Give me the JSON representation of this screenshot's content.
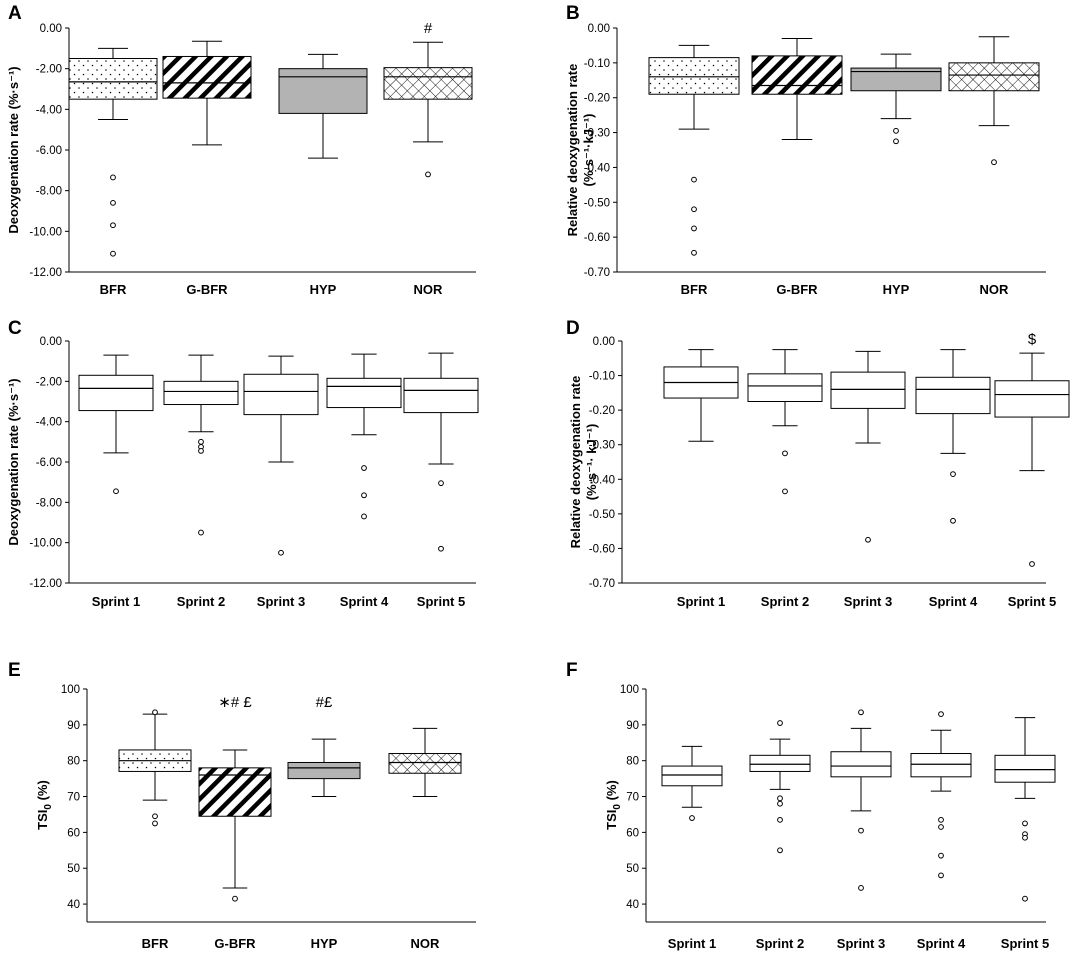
{
  "chart_data": [
    {
      "id": "A",
      "type": "boxplot",
      "panel_label": "A",
      "ylabel": "Deoxygenation rate (%·s⁻¹)",
      "ylim": [
        -12,
        0
      ],
      "yticks": [
        0,
        -2,
        -4,
        -6,
        -8,
        -10,
        -12
      ],
      "ytick_labels": [
        "0.00",
        "-2.00",
        "-4.00",
        "-6.00",
        "-8.00",
        "-10.00",
        "-12.00"
      ],
      "categories": [
        "BFR",
        "G-BFR",
        "HYP",
        "NOR"
      ],
      "boxes": [
        {
          "min": -4.5,
          "q1": -3.5,
          "median": -2.65,
          "q3": -1.5,
          "max": -1.0,
          "outliers": [
            -7.35,
            -8.6,
            -9.7,
            -11.1
          ],
          "pattern": "dots"
        },
        {
          "min": -5.75,
          "q1": -3.45,
          "median": -2.7,
          "q3": -1.4,
          "max": -0.65,
          "outliers": [],
          "pattern": "diag"
        },
        {
          "min": -6.4,
          "q1": -4.2,
          "median": -2.4,
          "q3": -2.0,
          "max": -1.3,
          "outliers": [],
          "pattern": "gray"
        },
        {
          "min": -5.6,
          "q1": -3.5,
          "median": -2.4,
          "q3": -1.95,
          "max": -0.7,
          "outliers": [
            -7.2
          ],
          "pattern": "cross"
        }
      ],
      "annotations": [
        {
          "category_index": 3,
          "text": "#"
        }
      ]
    },
    {
      "id": "B",
      "type": "boxplot",
      "panel_label": "B",
      "ylabel": "Relative deoxygenation rate",
      "ylabel2": "(%·s⁻¹·kJ⁻¹)",
      "ylim": [
        -0.7,
        0
      ],
      "yticks": [
        0,
        -0.1,
        -0.2,
        -0.3,
        -0.4,
        -0.5,
        -0.6,
        -0.7
      ],
      "ytick_labels": [
        "0.00",
        "-0.10",
        "-0.20",
        "-0.30",
        "-0.40",
        "-0.50",
        "-0.60",
        "-0.70"
      ],
      "categories": [
        "BFR",
        "G-BFR",
        "HYP",
        "NOR"
      ],
      "boxes": [
        {
          "min": -0.29,
          "q1": -0.19,
          "median": -0.14,
          "q3": -0.085,
          "max": -0.05,
          "outliers": [
            -0.435,
            -0.52,
            -0.575,
            -0.645
          ],
          "pattern": "dots"
        },
        {
          "min": -0.32,
          "q1": -0.19,
          "median": -0.165,
          "q3": -0.08,
          "max": -0.03,
          "outliers": [],
          "pattern": "diag"
        },
        {
          "min": -0.26,
          "q1": -0.18,
          "median": -0.125,
          "q3": -0.115,
          "max": -0.075,
          "outliers": [
            -0.295,
            -0.325
          ],
          "pattern": "gray"
        },
        {
          "min": -0.28,
          "q1": -0.18,
          "median": -0.135,
          "q3": -0.1,
          "max": -0.025,
          "outliers": [
            -0.385
          ],
          "pattern": "cross"
        }
      ],
      "annotations": []
    },
    {
      "id": "C",
      "type": "boxplot",
      "panel_label": "C",
      "ylabel": "Deoxygenation rate (%·s⁻¹)",
      "ylim": [
        -12,
        0
      ],
      "yticks": [
        0,
        -2,
        -4,
        -6,
        -8,
        -10,
        -12
      ],
      "ytick_labels": [
        "0.00",
        "-2.00",
        "-4.00",
        "-6.00",
        "-8.00",
        "-10.00",
        "-12.00"
      ],
      "categories": [
        "Sprint 1",
        "Sprint 2",
        "Sprint 3",
        "Sprint 4",
        "Sprint 5"
      ],
      "boxes": [
        {
          "min": -5.55,
          "q1": -3.45,
          "median": -2.35,
          "q3": -1.7,
          "max": -0.7,
          "outliers": [
            -7.45
          ],
          "pattern": "none"
        },
        {
          "min": -4.5,
          "q1": -3.15,
          "median": -2.5,
          "q3": -2.0,
          "max": -0.7,
          "outliers": [
            -5.0,
            -5.25,
            -5.45,
            -9.5
          ],
          "pattern": "none"
        },
        {
          "min": -6.0,
          "q1": -3.65,
          "median": -2.5,
          "q3": -1.65,
          "max": -0.75,
          "outliers": [
            -10.5
          ],
          "pattern": "none"
        },
        {
          "min": -4.65,
          "q1": -3.3,
          "median": -2.25,
          "q3": -1.85,
          "max": -0.65,
          "outliers": [
            -6.3,
            -7.65,
            -8.7
          ],
          "pattern": "none"
        },
        {
          "min": -6.1,
          "q1": -3.55,
          "median": -2.45,
          "q3": -1.85,
          "max": -0.6,
          "outliers": [
            -7.05,
            -10.3
          ],
          "pattern": "none"
        }
      ],
      "annotations": []
    },
    {
      "id": "D",
      "type": "boxplot",
      "panel_label": "D",
      "ylabel": "Relative deoxygenation rate",
      "ylabel2": "(%·s⁻¹· kJ⁻¹)",
      "ylim": [
        -0.7,
        0
      ],
      "yticks": [
        0,
        -0.1,
        -0.2,
        -0.3,
        -0.4,
        -0.5,
        -0.6,
        -0.7
      ],
      "ytick_labels": [
        "0.00",
        "-0.10",
        "-0.20",
        "-0.30",
        "-0.40",
        "-0.50",
        "-0.60",
        "-0.70"
      ],
      "categories": [
        "Sprint 1",
        "Sprint 2",
        "Sprint 3",
        "Sprint 4",
        "Sprint 5"
      ],
      "boxes": [
        {
          "min": -0.29,
          "q1": -0.165,
          "median": -0.12,
          "q3": -0.075,
          "max": -0.025,
          "outliers": [],
          "pattern": "none"
        },
        {
          "min": -0.245,
          "q1": -0.175,
          "median": -0.13,
          "q3": -0.095,
          "max": -0.025,
          "outliers": [
            -0.325,
            -0.435
          ],
          "pattern": "none"
        },
        {
          "min": -0.295,
          "q1": -0.195,
          "median": -0.14,
          "q3": -0.09,
          "max": -0.03,
          "outliers": [
            -0.575
          ],
          "pattern": "none"
        },
        {
          "min": -0.325,
          "q1": -0.21,
          "median": -0.14,
          "q3": -0.105,
          "max": -0.025,
          "outliers": [
            -0.385,
            -0.52
          ],
          "pattern": "none"
        },
        {
          "min": -0.375,
          "q1": -0.22,
          "median": -0.155,
          "q3": -0.115,
          "max": -0.035,
          "outliers": [
            -0.645
          ],
          "pattern": "none"
        }
      ],
      "annotations": [
        {
          "category_index": 4,
          "text": "$"
        }
      ]
    },
    {
      "id": "E",
      "type": "boxplot",
      "panel_label": "E",
      "ylabel": "TSI",
      "ylabel_sub": "0",
      "ylabel_suffix": " (%)",
      "ylim": [
        35,
        100
      ],
      "yticks": [
        100,
        90,
        80,
        70,
        60,
        50,
        40
      ],
      "ytick_labels": [
        "100",
        "90",
        "80",
        "70",
        "60",
        "50",
        "40"
      ],
      "categories": [
        "BFR",
        "G-BFR",
        "HYP",
        "NOR"
      ],
      "boxes": [
        {
          "min": 69,
          "q1": 77,
          "median": 80,
          "q3": 83,
          "max": 93,
          "outliers": [
            93.5,
            64.5,
            62.5
          ],
          "pattern": "dots"
        },
        {
          "min": 44.5,
          "q1": 64.5,
          "median": 76,
          "q3": 78,
          "max": 83,
          "outliers": [
            41.5
          ],
          "pattern": "diag"
        },
        {
          "min": 70,
          "q1": 75,
          "median": 78,
          "q3": 79.5,
          "max": 86,
          "outliers": [],
          "pattern": "gray"
        },
        {
          "min": 70,
          "q1": 76.5,
          "median": 79.5,
          "q3": 82,
          "max": 89,
          "outliers": [],
          "pattern": "cross"
        }
      ],
      "annotations": [
        {
          "category_index": 1,
          "text": "∗# £"
        },
        {
          "category_index": 2,
          "text": "#£"
        }
      ]
    },
    {
      "id": "F",
      "type": "boxplot",
      "panel_label": "F",
      "ylabel": "TSI",
      "ylabel_sub": "0",
      "ylabel_suffix": " (%)",
      "ylim": [
        35,
        100
      ],
      "yticks": [
        100,
        90,
        80,
        70,
        60,
        50,
        40
      ],
      "ytick_labels": [
        "100",
        "90",
        "80",
        "70",
        "60",
        "50",
        "40"
      ],
      "categories": [
        "Sprint 1",
        "Sprint 2",
        "Sprint 3",
        "Sprint 4",
        "Sprint 5"
      ],
      "boxes": [
        {
          "min": 67,
          "q1": 73,
          "median": 76,
          "q3": 78.5,
          "max": 84,
          "outliers": [
            64
          ],
          "pattern": "none"
        },
        {
          "min": 72,
          "q1": 77,
          "median": 79,
          "q3": 81.5,
          "max": 86,
          "outliers": [
            90.5,
            69.5,
            68,
            63.5,
            55
          ],
          "pattern": "none"
        },
        {
          "min": 66,
          "q1": 75.5,
          "median": 78.5,
          "q3": 82.5,
          "max": 89,
          "outliers": [
            93.5,
            60.5,
            44.5
          ],
          "pattern": "none"
        },
        {
          "min": 71.5,
          "q1": 75.5,
          "median": 79,
          "q3": 82,
          "max": 88.5,
          "outliers": [
            93,
            63.5,
            61.5,
            53.5,
            48
          ],
          "pattern": "none"
        },
        {
          "min": 69.5,
          "q1": 74,
          "median": 77.5,
          "q3": 81.5,
          "max": 92,
          "outliers": [
            62.5,
            59.5,
            58.5,
            41.5
          ],
          "pattern": "none"
        }
      ],
      "annotations": []
    }
  ]
}
